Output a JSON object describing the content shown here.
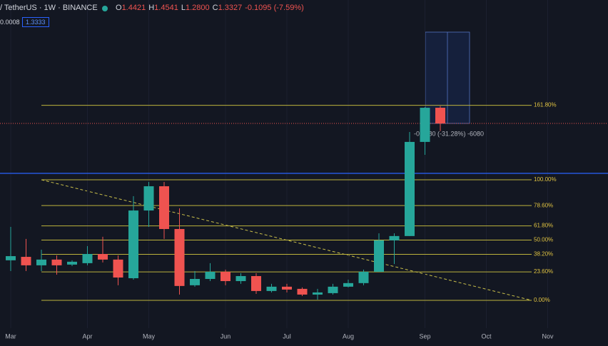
{
  "header": {
    "symbol": "/ TetherUS · 1W · BINANCE",
    "ohlc": [
      {
        "key": "O",
        "value": "1.4421"
      },
      {
        "key": "H",
        "value": "1.4541"
      },
      {
        "key": "L",
        "value": "1.2800"
      },
      {
        "key": "C",
        "value": "1.3327"
      }
    ],
    "change": "-0.1095 (-7.59%)",
    "row2_left": "0.0008",
    "row2_box": "1.3333"
  },
  "chart_data": {
    "type": "candlestick",
    "open": [
      0.379,
      0.403,
      0.344,
      0.384,
      0.349,
      0.359,
      0.423,
      0.384,
      0.254,
      0.726,
      0.895,
      0.597,
      0.205,
      0.249,
      0.299,
      0.234,
      0.269,
      0.165,
      0.195,
      0.18,
      0.14,
      0.15,
      0.195,
      0.22,
      0.299,
      0.518,
      0.548,
      1.204,
      1.4421
    ],
    "high": [
      0.612,
      0.528,
      0.453,
      0.413,
      0.379,
      0.478,
      0.543,
      0.413,
      0.826,
      0.925,
      0.925,
      0.741,
      0.304,
      0.359,
      0.314,
      0.289,
      0.289,
      0.215,
      0.215,
      0.19,
      0.18,
      0.215,
      0.244,
      0.314,
      0.567,
      0.567,
      1.273,
      1.447,
      1.4541
    ],
    "low": [
      0.304,
      0.304,
      0.304,
      0.279,
      0.339,
      0.344,
      0.364,
      0.205,
      0.244,
      0.612,
      0.528,
      0.14,
      0.195,
      0.234,
      0.205,
      0.215,
      0.145,
      0.155,
      0.155,
      0.13,
      0.105,
      0.14,
      0.19,
      0.205,
      0.299,
      0.353,
      0.548,
      1.114,
      1.28
    ],
    "close": [
      0.408,
      0.344,
      0.384,
      0.344,
      0.369,
      0.423,
      0.384,
      0.259,
      0.726,
      0.895,
      0.597,
      0.2,
      0.249,
      0.299,
      0.234,
      0.269,
      0.165,
      0.195,
      0.175,
      0.14,
      0.155,
      0.195,
      0.22,
      0.299,
      0.518,
      0.548,
      1.204,
      1.442,
      1.3327
    ],
    "up_color": "#26a69a",
    "down_color": "#ef5350",
    "xlim": [
      -0.698,
      38.93
    ],
    "ylim": [
      -0.094,
      2.193
    ],
    "xticks": [
      {
        "value": 0,
        "label": "Mar"
      },
      {
        "value": 5,
        "label": "Apr"
      },
      {
        "value": 9,
        "label": "May"
      },
      {
        "value": 14,
        "label": "Jun"
      },
      {
        "value": 18,
        "label": "Jul"
      },
      {
        "value": 22,
        "label": "Aug"
      },
      {
        "value": 27,
        "label": "Sep"
      },
      {
        "value": 31,
        "label": "Oct"
      },
      {
        "value": 35,
        "label": "Nov"
      }
    ],
    "grid": true,
    "fib": {
      "low": 0.1,
      "high": 0.94,
      "color": "#bdb33c",
      "levels": [
        {
          "value": 161.8,
          "label": "161.80%"
        },
        {
          "value": 100,
          "label": "100.00%"
        },
        {
          "value": 78.6,
          "label": "78.60%"
        },
        {
          "value": 61.8,
          "label": "61.80%"
        },
        {
          "value": 50,
          "label": "50.00%"
        },
        {
          "value": 38.2,
          "label": "38.20%"
        },
        {
          "value": 23.6,
          "label": "23.60%"
        },
        {
          "value": 0,
          "label": "0.00%"
        }
      ]
    },
    "horizontal_line": 0.985,
    "last_price": 1.3327,
    "measure_text": "-0.4180 (-31.28%) -6080"
  }
}
